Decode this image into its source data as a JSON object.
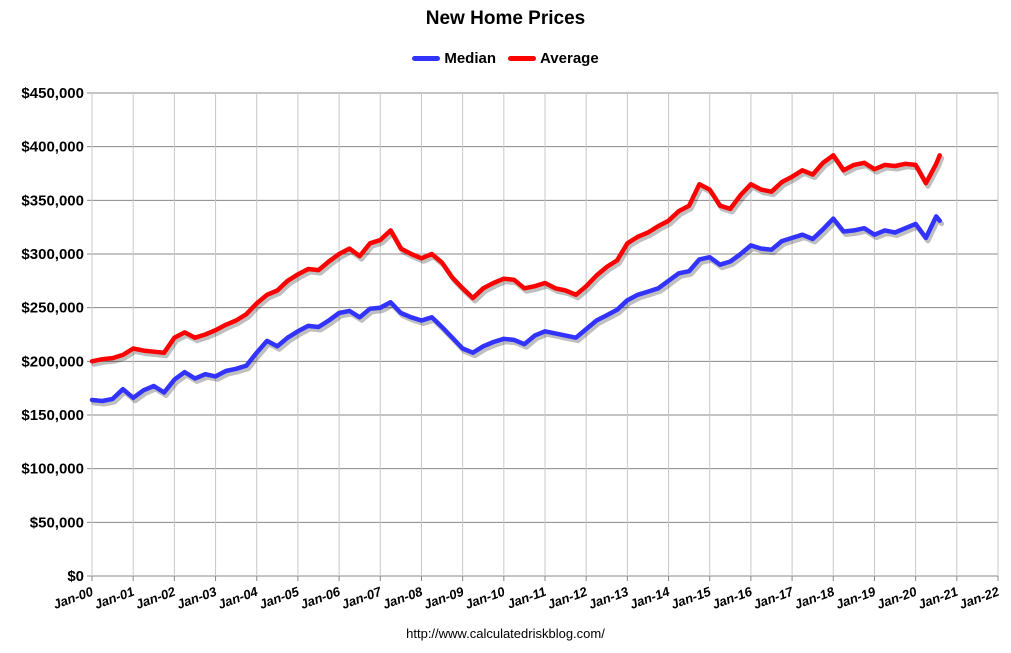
{
  "chart_data": {
    "type": "line",
    "title": "New Home Prices",
    "xlabel": "",
    "ylabel": "",
    "source": "http://www.calculatedriskblog.com/",
    "ylim": [
      0,
      450000
    ],
    "xlim": [
      "2000-01",
      "2022-01"
    ],
    "y_ticks": [
      "$0",
      "$50,000",
      "$100,000",
      "$150,000",
      "$200,000",
      "$250,000",
      "$300,000",
      "$350,000",
      "$400,000",
      "$450,000"
    ],
    "x_ticks": [
      "Jan-00",
      "Jan-01",
      "Jan-02",
      "Jan-03",
      "Jan-04",
      "Jan-05",
      "Jan-06",
      "Jan-07",
      "Jan-08",
      "Jan-09",
      "Jan-10",
      "Jan-11",
      "Jan-12",
      "Jan-13",
      "Jan-14",
      "Jan-15",
      "Jan-16",
      "Jan-17",
      "Jan-18",
      "Jan-19",
      "Jan-20",
      "Jan-21",
      "Jan-22"
    ],
    "grid": true,
    "legend_position": "top-center",
    "series": [
      {
        "name": "Median",
        "color": "#3333ff",
        "points": [
          [
            "2000-01",
            164000
          ],
          [
            "2000-04",
            163000
          ],
          [
            "2000-07",
            165000
          ],
          [
            "2000-10",
            174000
          ],
          [
            "2001-01",
            166000
          ],
          [
            "2001-04",
            173000
          ],
          [
            "2001-07",
            177000
          ],
          [
            "2001-10",
            171000
          ],
          [
            "2002-01",
            183000
          ],
          [
            "2002-04",
            190000
          ],
          [
            "2002-07",
            184000
          ],
          [
            "2002-10",
            188000
          ],
          [
            "2003-01",
            186000
          ],
          [
            "2003-04",
            191000
          ],
          [
            "2003-07",
            193000
          ],
          [
            "2003-10",
            196000
          ],
          [
            "2004-01",
            208000
          ],
          [
            "2004-04",
            219000
          ],
          [
            "2004-07",
            214000
          ],
          [
            "2004-10",
            222000
          ],
          [
            "2005-01",
            228000
          ],
          [
            "2005-04",
            233000
          ],
          [
            "2005-07",
            232000
          ],
          [
            "2005-10",
            238000
          ],
          [
            "2006-01",
            245000
          ],
          [
            "2006-04",
            247000
          ],
          [
            "2006-07",
            241000
          ],
          [
            "2006-10",
            249000
          ],
          [
            "2007-01",
            250000
          ],
          [
            "2007-04",
            255000
          ],
          [
            "2007-07",
            245000
          ],
          [
            "2007-10",
            241000
          ],
          [
            "2008-01",
            238000
          ],
          [
            "2008-04",
            241000
          ],
          [
            "2008-07",
            232000
          ],
          [
            "2008-10",
            222000
          ],
          [
            "2009-01",
            212000
          ],
          [
            "2009-04",
            208000
          ],
          [
            "2009-07",
            214000
          ],
          [
            "2009-10",
            218000
          ],
          [
            "2010-01",
            221000
          ],
          [
            "2010-04",
            220000
          ],
          [
            "2010-07",
            216000
          ],
          [
            "2010-10",
            224000
          ],
          [
            "2011-01",
            228000
          ],
          [
            "2011-04",
            226000
          ],
          [
            "2011-07",
            224000
          ],
          [
            "2011-10",
            222000
          ],
          [
            "2012-01",
            230000
          ],
          [
            "2012-04",
            238000
          ],
          [
            "2012-07",
            243000
          ],
          [
            "2012-10",
            248000
          ],
          [
            "2013-01",
            257000
          ],
          [
            "2013-04",
            262000
          ],
          [
            "2013-07",
            265000
          ],
          [
            "2013-10",
            268000
          ],
          [
            "2014-01",
            275000
          ],
          [
            "2014-04",
            282000
          ],
          [
            "2014-07",
            284000
          ],
          [
            "2014-10",
            295000
          ],
          [
            "2015-01",
            297000
          ],
          [
            "2015-04",
            290000
          ],
          [
            "2015-07",
            293000
          ],
          [
            "2015-10",
            300000
          ],
          [
            "2016-01",
            308000
          ],
          [
            "2016-04",
            305000
          ],
          [
            "2016-07",
            304000
          ],
          [
            "2016-10",
            312000
          ],
          [
            "2017-01",
            315000
          ],
          [
            "2017-04",
            318000
          ],
          [
            "2017-07",
            314000
          ],
          [
            "2017-10",
            323000
          ],
          [
            "2018-01",
            333000
          ],
          [
            "2018-04",
            321000
          ],
          [
            "2018-07",
            322000
          ],
          [
            "2018-10",
            324000
          ],
          [
            "2019-01",
            318000
          ],
          [
            "2019-04",
            322000
          ],
          [
            "2019-07",
            320000
          ],
          [
            "2019-10",
            324000
          ],
          [
            "2020-01",
            328000
          ],
          [
            "2020-04",
            315000
          ],
          [
            "2020-07",
            335000
          ],
          [
            "2020-08",
            331000
          ]
        ]
      },
      {
        "name": "Average",
        "color": "#ff0000",
        "points": [
          [
            "2000-01",
            200000
          ],
          [
            "2000-04",
            202000
          ],
          [
            "2000-07",
            203000
          ],
          [
            "2000-10",
            206000
          ],
          [
            "2001-01",
            212000
          ],
          [
            "2001-04",
            210000
          ],
          [
            "2001-07",
            209000
          ],
          [
            "2001-10",
            208000
          ],
          [
            "2002-01",
            222000
          ],
          [
            "2002-04",
            227000
          ],
          [
            "2002-07",
            222000
          ],
          [
            "2002-10",
            225000
          ],
          [
            "2003-01",
            229000
          ],
          [
            "2003-04",
            234000
          ],
          [
            "2003-07",
            238000
          ],
          [
            "2003-10",
            244000
          ],
          [
            "2004-01",
            254000
          ],
          [
            "2004-04",
            262000
          ],
          [
            "2004-07",
            266000
          ],
          [
            "2004-10",
            275000
          ],
          [
            "2005-01",
            281000
          ],
          [
            "2005-04",
            286000
          ],
          [
            "2005-07",
            285000
          ],
          [
            "2005-10",
            293000
          ],
          [
            "2006-01",
            300000
          ],
          [
            "2006-04",
            305000
          ],
          [
            "2006-07",
            298000
          ],
          [
            "2006-10",
            310000
          ],
          [
            "2007-01",
            313000
          ],
          [
            "2007-04",
            322000
          ],
          [
            "2007-07",
            305000
          ],
          [
            "2007-10",
            300000
          ],
          [
            "2008-01",
            296000
          ],
          [
            "2008-04",
            300000
          ],
          [
            "2008-07",
            292000
          ],
          [
            "2008-10",
            278000
          ],
          [
            "2009-01",
            268000
          ],
          [
            "2009-04",
            259000
          ],
          [
            "2009-07",
            268000
          ],
          [
            "2009-10",
            273000
          ],
          [
            "2010-01",
            277000
          ],
          [
            "2010-04",
            276000
          ],
          [
            "2010-07",
            268000
          ],
          [
            "2010-10",
            270000
          ],
          [
            "2011-01",
            273000
          ],
          [
            "2011-04",
            268000
          ],
          [
            "2011-07",
            266000
          ],
          [
            "2011-10",
            262000
          ],
          [
            "2012-01",
            270000
          ],
          [
            "2012-04",
            280000
          ],
          [
            "2012-07",
            288000
          ],
          [
            "2012-10",
            294000
          ],
          [
            "2013-01",
            310000
          ],
          [
            "2013-04",
            316000
          ],
          [
            "2013-07",
            320000
          ],
          [
            "2013-10",
            326000
          ],
          [
            "2014-01",
            331000
          ],
          [
            "2014-04",
            340000
          ],
          [
            "2014-07",
            345000
          ],
          [
            "2014-10",
            365000
          ],
          [
            "2015-01",
            360000
          ],
          [
            "2015-04",
            345000
          ],
          [
            "2015-07",
            342000
          ],
          [
            "2015-10",
            355000
          ],
          [
            "2016-01",
            365000
          ],
          [
            "2016-04",
            360000
          ],
          [
            "2016-07",
            358000
          ],
          [
            "2016-10",
            367000
          ],
          [
            "2017-01",
            372000
          ],
          [
            "2017-04",
            378000
          ],
          [
            "2017-07",
            374000
          ],
          [
            "2017-10",
            385000
          ],
          [
            "2018-01",
            392000
          ],
          [
            "2018-04",
            378000
          ],
          [
            "2018-07",
            383000
          ],
          [
            "2018-10",
            385000
          ],
          [
            "2019-01",
            379000
          ],
          [
            "2019-04",
            383000
          ],
          [
            "2019-07",
            382000
          ],
          [
            "2019-10",
            384000
          ],
          [
            "2020-01",
            383000
          ],
          [
            "2020-04",
            366000
          ],
          [
            "2020-07",
            384000
          ],
          [
            "2020-08",
            392000
          ]
        ]
      }
    ]
  }
}
